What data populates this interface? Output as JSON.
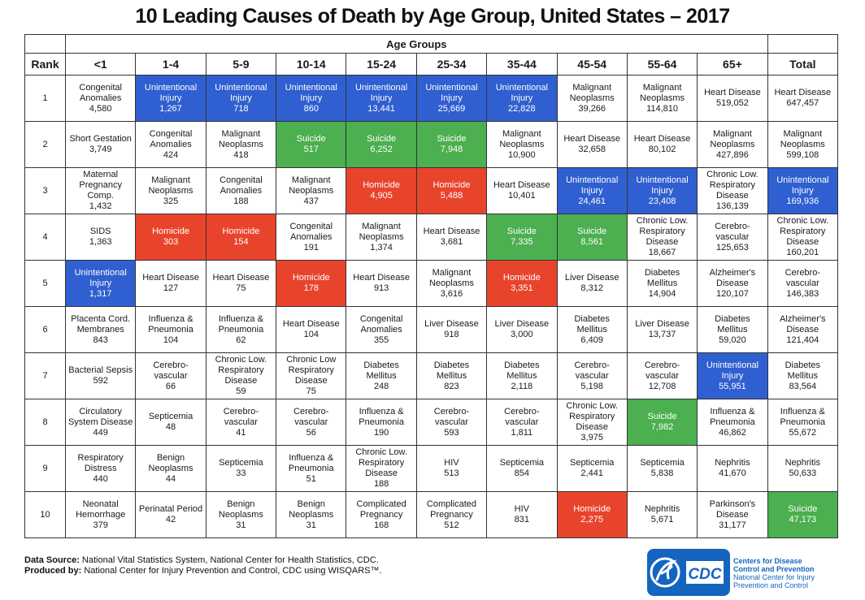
{
  "title": "10 Leading Causes of Death by Age Group, United States – 2017",
  "table": {
    "age_groups_label": "Age Groups",
    "rank_label": "Rank",
    "total_label": "Total",
    "columns": [
      "<1",
      "1-4",
      "5-9",
      "10-14",
      "15-24",
      "25-34",
      "35-44",
      "45-54",
      "55-64",
      "65+"
    ],
    "rows": [
      {
        "rank": "1",
        "cells": [
          {
            "cause": "Congenital Anomalies",
            "value": "4,580",
            "color": "white"
          },
          {
            "cause": "Unintentional Injury",
            "value": "1,267",
            "color": "blue"
          },
          {
            "cause": "Unintentional Injury",
            "value": "718",
            "color": "blue"
          },
          {
            "cause": "Unintentional Injury",
            "value": "860",
            "color": "blue"
          },
          {
            "cause": "Unintentional Injury",
            "value": "13,441",
            "color": "blue"
          },
          {
            "cause": "Unintentional Injury",
            "value": "25,669",
            "color": "blue"
          },
          {
            "cause": "Unintentional Injury",
            "value": "22,828",
            "color": "blue"
          },
          {
            "cause": "Malignant Neoplasms",
            "value": "39,266",
            "color": "white"
          },
          {
            "cause": "Malignant Neoplasms",
            "value": "114,810",
            "color": "white"
          },
          {
            "cause": "Heart Disease",
            "value": "519,052",
            "color": "white"
          },
          {
            "cause": "Heart Disease",
            "value": "647,457",
            "color": "white"
          }
        ]
      },
      {
        "rank": "2",
        "cells": [
          {
            "cause": "Short Gestation",
            "value": "3,749",
            "color": "white"
          },
          {
            "cause": "Congenital Anomalies",
            "value": "424",
            "color": "white"
          },
          {
            "cause": "Malignant Neoplasms",
            "value": "418",
            "color": "white"
          },
          {
            "cause": "Suicide",
            "value": "517",
            "color": "green"
          },
          {
            "cause": "Suicide",
            "value": "6,252",
            "color": "green"
          },
          {
            "cause": "Suicide",
            "value": "7,948",
            "color": "green"
          },
          {
            "cause": "Malignant Neoplasms",
            "value": "10,900",
            "color": "white"
          },
          {
            "cause": "Heart Disease",
            "value": "32,658",
            "color": "white"
          },
          {
            "cause": "Heart Disease",
            "value": "80,102",
            "color": "white"
          },
          {
            "cause": "Malignant Neoplasms",
            "value": "427,896",
            "color": "white"
          },
          {
            "cause": "Malignant Neoplasms",
            "value": "599,108",
            "color": "white"
          }
        ]
      },
      {
        "rank": "3",
        "cells": [
          {
            "cause": "Maternal Pregnancy Comp.",
            "value": "1,432",
            "color": "white"
          },
          {
            "cause": "Malignant Neoplasms",
            "value": "325",
            "color": "white"
          },
          {
            "cause": "Congenital Anomalies",
            "value": "188",
            "color": "white"
          },
          {
            "cause": "Malignant Neoplasms",
            "value": "437",
            "color": "white"
          },
          {
            "cause": "Homicide",
            "value": "4,905",
            "color": "red"
          },
          {
            "cause": "Homicide",
            "value": "5,488",
            "color": "red"
          },
          {
            "cause": "Heart Disease",
            "value": "10,401",
            "color": "white"
          },
          {
            "cause": "Unintentional Injury",
            "value": "24,461",
            "color": "blue"
          },
          {
            "cause": "Unintentional Injury",
            "value": "23,408",
            "color": "blue"
          },
          {
            "cause": "Chronic Low. Respiratory Disease",
            "value": "136,139",
            "color": "white"
          },
          {
            "cause": "Unintentional Injury",
            "value": "169,936",
            "color": "blue"
          }
        ]
      },
      {
        "rank": "4",
        "cells": [
          {
            "cause": "SIDS",
            "value": "1,363",
            "color": "white"
          },
          {
            "cause": "Homicide",
            "value": "303",
            "color": "red"
          },
          {
            "cause": "Homicide",
            "value": "154",
            "color": "red"
          },
          {
            "cause": "Congenital Anomalies",
            "value": "191",
            "color": "white"
          },
          {
            "cause": "Malignant Neoplasms",
            "value": "1,374",
            "color": "white"
          },
          {
            "cause": "Heart Disease",
            "value": "3,681",
            "color": "white"
          },
          {
            "cause": "Suicide",
            "value": "7,335",
            "color": "green"
          },
          {
            "cause": "Suicide",
            "value": "8,561",
            "color": "green"
          },
          {
            "cause": "Chronic Low. Respiratory Disease",
            "value": "18,667",
            "color": "white"
          },
          {
            "cause": "Cerebro- vascular",
            "value": "125,653",
            "color": "white"
          },
          {
            "cause": "Chronic Low. Respiratory Disease",
            "value": "160,201",
            "color": "white"
          }
        ]
      },
      {
        "rank": "5",
        "cells": [
          {
            "cause": "Unintentional Injury",
            "value": "1,317",
            "color": "blue"
          },
          {
            "cause": "Heart Disease",
            "value": "127",
            "color": "white"
          },
          {
            "cause": "Heart Disease",
            "value": "75",
            "color": "white"
          },
          {
            "cause": "Homicide",
            "value": "178",
            "color": "red"
          },
          {
            "cause": "Heart Disease",
            "value": "913",
            "color": "white"
          },
          {
            "cause": "Malignant Neoplasms",
            "value": "3,616",
            "color": "white"
          },
          {
            "cause": "Homicide",
            "value": "3,351",
            "color": "red"
          },
          {
            "cause": "Liver Disease",
            "value": "8,312",
            "color": "white"
          },
          {
            "cause": "Diabetes Mellitus",
            "value": "14,904",
            "color": "white"
          },
          {
            "cause": "Alzheimer's Disease",
            "value": "120,107",
            "color": "white"
          },
          {
            "cause": "Cerebro- vascular",
            "value": "146,383",
            "color": "white"
          }
        ]
      },
      {
        "rank": "6",
        "cells": [
          {
            "cause": "Placenta Cord. Membranes",
            "value": "843",
            "color": "white"
          },
          {
            "cause": "Influenza & Pneumonia",
            "value": "104",
            "color": "white"
          },
          {
            "cause": "Influenza & Pneumonia",
            "value": "62",
            "color": "white"
          },
          {
            "cause": "Heart Disease",
            "value": "104",
            "color": "white"
          },
          {
            "cause": "Congenital Anomalies",
            "value": "355",
            "color": "white"
          },
          {
            "cause": "Liver Disease",
            "value": "918",
            "color": "white"
          },
          {
            "cause": "Liver Disease",
            "value": "3,000",
            "color": "white"
          },
          {
            "cause": "Diabetes Mellitus",
            "value": "6,409",
            "color": "white"
          },
          {
            "cause": "Liver Disease",
            "value": "13,737",
            "color": "white"
          },
          {
            "cause": "Diabetes Mellitus",
            "value": "59,020",
            "color": "white"
          },
          {
            "cause": "Alzheimer's Disease",
            "value": "121,404",
            "color": "white"
          }
        ]
      },
      {
        "rank": "7",
        "cells": [
          {
            "cause": "Bacterial Sepsis",
            "value": "592",
            "color": "white"
          },
          {
            "cause": "Cerebro- vascular",
            "value": "66",
            "color": "white"
          },
          {
            "cause": "Chronic Low. Respiratory Disease",
            "value": "59",
            "color": "white"
          },
          {
            "cause": "Chronic Low Respiratory Disease",
            "value": "75",
            "color": "white"
          },
          {
            "cause": "Diabetes Mellitus",
            "value": "248",
            "color": "white"
          },
          {
            "cause": "Diabetes Mellitus",
            "value": "823",
            "color": "white"
          },
          {
            "cause": "Diabetes Mellitus",
            "value": "2,118",
            "color": "white"
          },
          {
            "cause": "Cerebro- vascular",
            "value": "5,198",
            "color": "white"
          },
          {
            "cause": "Cerebro- vascular",
            "value": "12,708",
            "color": "white"
          },
          {
            "cause": "Unintentional Injury",
            "value": "55,951",
            "color": "blue"
          },
          {
            "cause": "Diabetes Mellitus",
            "value": "83,564",
            "color": "white"
          }
        ]
      },
      {
        "rank": "8",
        "cells": [
          {
            "cause": "Circulatory System Disease",
            "value": "449",
            "color": "white"
          },
          {
            "cause": "Septicemia",
            "value": "48",
            "color": "white"
          },
          {
            "cause": "Cerebro- vascular",
            "value": "41",
            "color": "white"
          },
          {
            "cause": "Cerebro- vascular",
            "value": "56",
            "color": "white"
          },
          {
            "cause": "Influenza & Pneumonia",
            "value": "190",
            "color": "white"
          },
          {
            "cause": "Cerebro- vascular",
            "value": "593",
            "color": "white"
          },
          {
            "cause": "Cerebro- vascular",
            "value": "1,811",
            "color": "white"
          },
          {
            "cause": "Chronic Low. Respiratory Disease",
            "value": "3,975",
            "color": "white"
          },
          {
            "cause": "Suicide",
            "value": "7,982",
            "color": "green"
          },
          {
            "cause": "Influenza & Pneumonia",
            "value": "46,862",
            "color": "white"
          },
          {
            "cause": "Influenza & Pneumonia",
            "value": "55,672",
            "color": "white"
          }
        ]
      },
      {
        "rank": "9",
        "cells": [
          {
            "cause": "Respiratory Distress",
            "value": "440",
            "color": "white"
          },
          {
            "cause": "Benign Neoplasms",
            "value": "44",
            "color": "white"
          },
          {
            "cause": "Septicemia",
            "value": "33",
            "color": "white"
          },
          {
            "cause": "Influenza & Pneumonia",
            "value": "51",
            "color": "white"
          },
          {
            "cause": "Chronic Low. Respiratory Disease",
            "value": "188",
            "color": "white"
          },
          {
            "cause": "HIV",
            "value": "513",
            "color": "white"
          },
          {
            "cause": "Septicemia",
            "value": "854",
            "color": "white"
          },
          {
            "cause": "Septicemia",
            "value": "2,441",
            "color": "white"
          },
          {
            "cause": "Septicemia",
            "value": "5,838",
            "color": "white"
          },
          {
            "cause": "Nephritis",
            "value": "41,670",
            "color": "white"
          },
          {
            "cause": "Nephritis",
            "value": "50,633",
            "color": "white"
          }
        ]
      },
      {
        "rank": "10",
        "cells": [
          {
            "cause": "Neonatal Hemorrhage",
            "value": "379",
            "color": "white"
          },
          {
            "cause": "Perinatal Period",
            "value": "42",
            "color": "white"
          },
          {
            "cause": "Benign Neoplasms",
            "value": "31",
            "color": "white"
          },
          {
            "cause": "Benign Neoplasms",
            "value": "31",
            "color": "white"
          },
          {
            "cause": "Complicated Pregnancy",
            "value": "168",
            "color": "white"
          },
          {
            "cause": "Complicated Pregnancy",
            "value": "512",
            "color": "white"
          },
          {
            "cause": "HIV",
            "value": "831",
            "color": "white"
          },
          {
            "cause": "Homicide",
            "value": "2,275",
            "color": "red"
          },
          {
            "cause": "Nephritis",
            "value": "5,671",
            "color": "white"
          },
          {
            "cause": "Parkinson's Disease",
            "value": "31,177",
            "color": "white"
          },
          {
            "cause": "Suicide",
            "value": "47,173",
            "color": "green"
          }
        ]
      }
    ]
  },
  "footer": {
    "data_source_label": "Data Source:",
    "data_source_text": "National Vital Statistics System, National Center for Health Statistics, CDC.",
    "produced_by_label": "Produced by:",
    "produced_by_text": "National Center for Injury Prevention and Control, CDC using WISQARS™."
  },
  "logo": {
    "icon": "hhs-eagle-icon",
    "text": "CDC",
    "org_line1": "Centers for Disease",
    "org_line2": "Control and Prevention",
    "org_line3": "National Center for Injury",
    "org_line4": "Prevention and Control"
  },
  "colors": {
    "unintentional_injury": "#2f5fd0",
    "suicide": "#4caf50",
    "homicide": "#e8442c",
    "cdc_blue": "#1565c0"
  }
}
